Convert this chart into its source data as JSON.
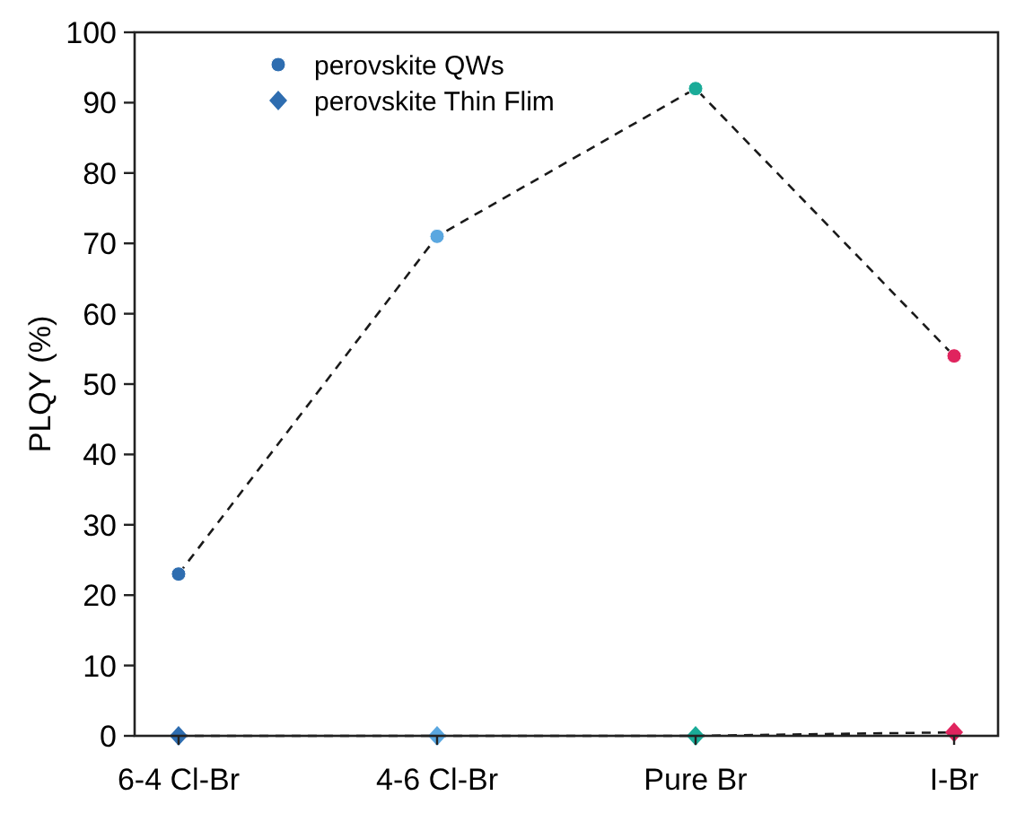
{
  "chart_data": {
    "type": "line",
    "ylabel": "PLQY (%)",
    "categories": [
      "6-4 Cl-Br",
      "4-6 Cl-Br",
      "Pure Br",
      "I-Br"
    ],
    "ylim": [
      0,
      100
    ],
    "yticks": [
      0,
      10,
      20,
      30,
      40,
      50,
      60,
      70,
      80,
      90,
      100
    ],
    "grid": false,
    "legend": "top left",
    "line_style": "dashed",
    "series": [
      {
        "name": "perovskite QWs",
        "color": "#1a1a1a",
        "marker": "circle",
        "values": [
          23,
          71,
          92,
          54
        ],
        "colors": [
          "#2e6db0",
          "#5aa7e0",
          "#1aab98",
          "#e0245e"
        ]
      },
      {
        "name": "perovskite Thin Flim",
        "color": "#1a1a1a",
        "marker": "diamond",
        "values": [
          0,
          0,
          0,
          0.5
        ],
        "colors": [
          "#2e6db0",
          "#5aa7e0",
          "#1aab98",
          "#e0245e"
        ]
      }
    ]
  }
}
